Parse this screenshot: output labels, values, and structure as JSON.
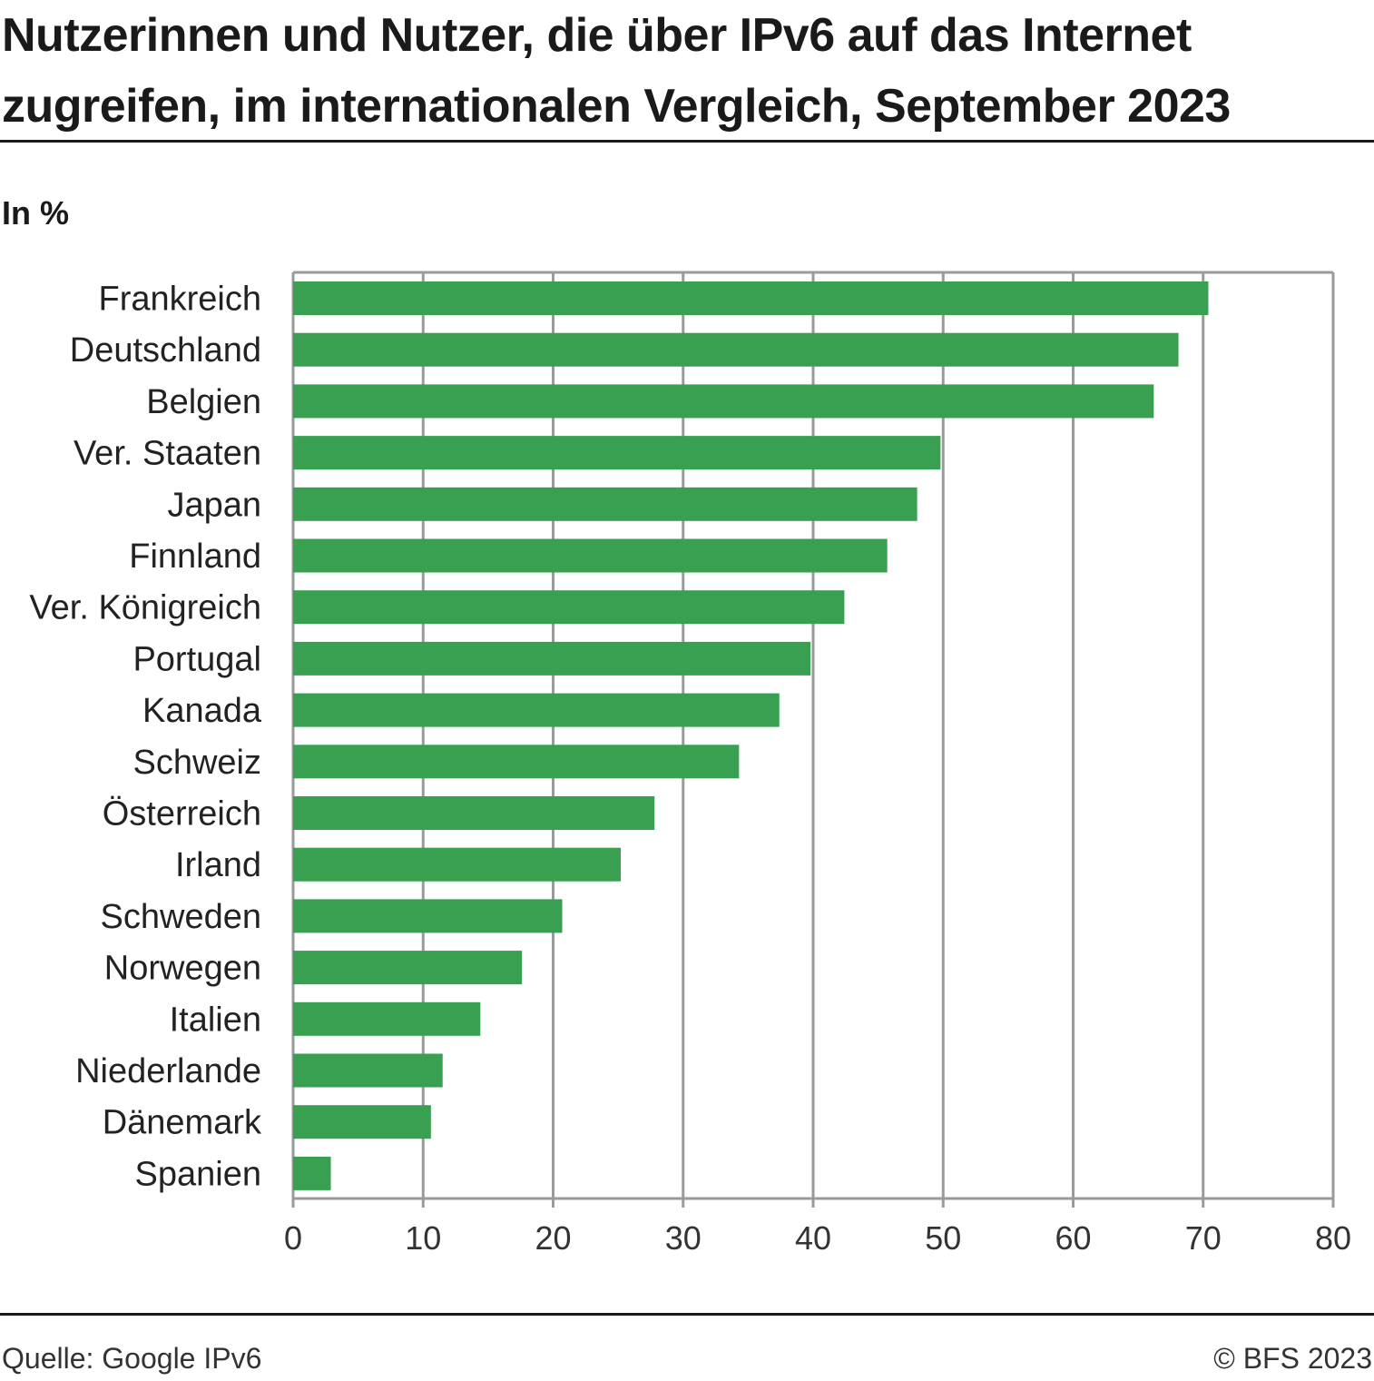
{
  "header": {
    "title_line1": "Nutzerinnen und Nutzer, die über IPv6 auf das Internet",
    "title_line2": "zugreifen, im internationalen Vergleich, September 2023",
    "unit": "In %"
  },
  "footer": {
    "source": "Quelle: Google IPv6",
    "copyright": "© BFS 2023"
  },
  "chart_data": {
    "type": "bar",
    "orientation": "horizontal",
    "categories": [
      "Frankreich",
      "Deutschland",
      "Belgien",
      "Ver. Staaten",
      "Japan",
      "Finnland",
      "Ver. Königreich",
      "Portugal",
      "Kanada",
      "Schweiz",
      "Österreich",
      "Irland",
      "Schweden",
      "Norwegen",
      "Italien",
      "Niederlande",
      "Dänemark",
      "Spanien"
    ],
    "values": [
      70.4,
      68.1,
      66.2,
      49.8,
      48.0,
      45.7,
      42.4,
      39.8,
      37.4,
      34.3,
      27.8,
      25.2,
      20.7,
      17.6,
      14.4,
      11.5,
      10.6,
      2.9
    ],
    "xlim": [
      0,
      80
    ],
    "xticks": [
      0,
      10,
      20,
      30,
      40,
      50,
      60,
      70,
      80
    ],
    "grid": true,
    "bar_color": "#38a050",
    "grid_color": "#9a9a9a"
  }
}
